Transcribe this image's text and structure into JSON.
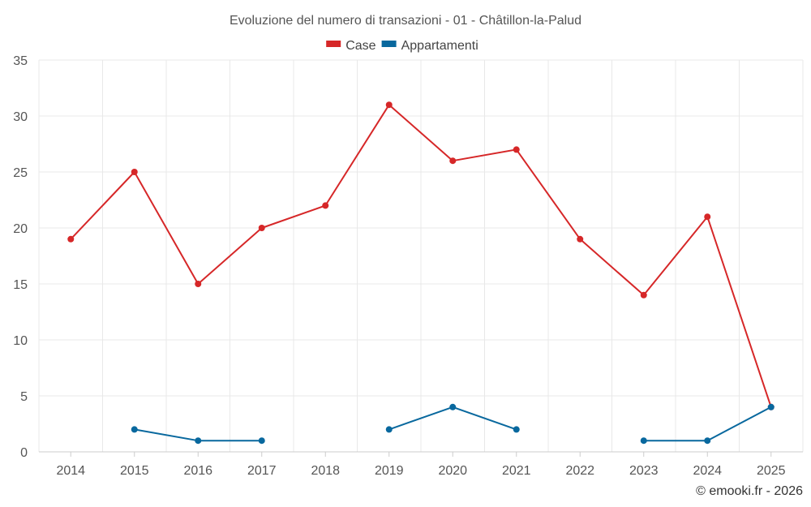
{
  "chart_data": {
    "type": "line",
    "title": "Evoluzione del numero di transazioni - 01 - Châtillon-la-Palud",
    "categories": [
      "2014",
      "2015",
      "2016",
      "2017",
      "2018",
      "2019",
      "2020",
      "2021",
      "2022",
      "2023",
      "2024",
      "2025"
    ],
    "series": [
      {
        "name": "Case",
        "color": "#d62728",
        "values": [
          19,
          25,
          15,
          20,
          22,
          31,
          26,
          27,
          19,
          14,
          21,
          4
        ]
      },
      {
        "name": "Appartamenti",
        "color": "#08689e",
        "values": [
          null,
          2,
          1,
          1,
          null,
          2,
          4,
          2,
          null,
          1,
          1,
          4
        ]
      }
    ],
    "ylim": [
      0,
      35
    ],
    "yticks": [
      0,
      5,
      10,
      15,
      20,
      25,
      30,
      35
    ],
    "legend_position": "top-center",
    "grid": true,
    "credit": "© emooki.fr - 2026"
  }
}
